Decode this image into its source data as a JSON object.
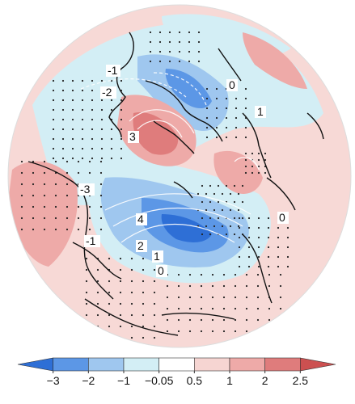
{
  "figure": {
    "contour_labels": [
      "-1",
      "-2",
      "0",
      "1",
      "3",
      "-3",
      "4",
      "-1",
      "2",
      "1",
      "0",
      "0"
    ],
    "colorbar": {
      "ticks": [
        "−3",
        "−2",
        "−1",
        "−0.05",
        "0.5",
        "1",
        "2",
        "2.5"
      ],
      "colors": [
        "#2e6fd6",
        "#5c97e6",
        "#9fc7ef",
        "#d3eef5",
        "#ffffff",
        "#f6d5d2",
        "#eeaaa8",
        "#df7c7c",
        "#cc5050"
      ]
    }
  }
}
